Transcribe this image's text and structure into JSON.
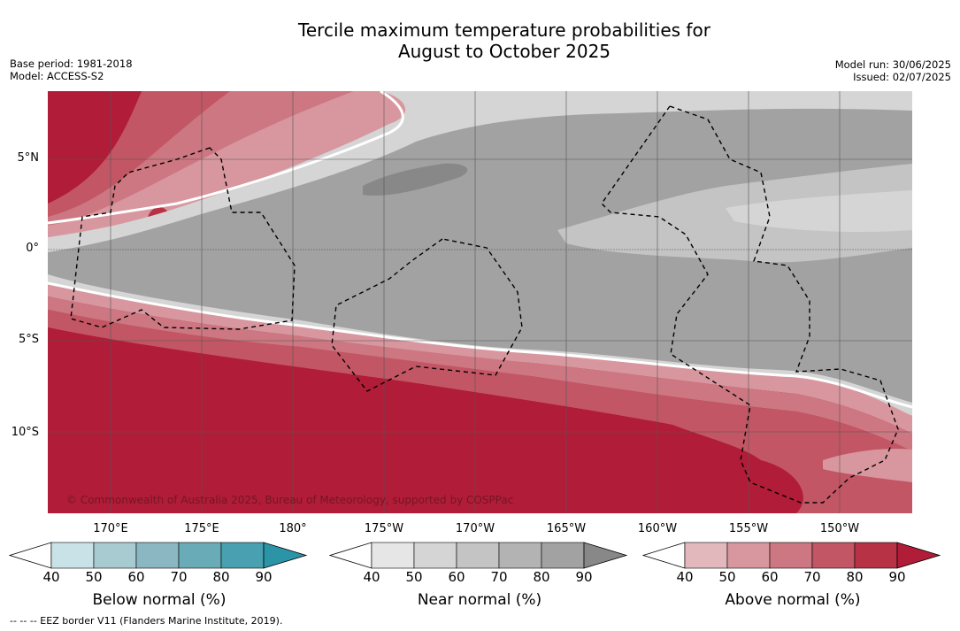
{
  "title_line1": "Tercile maximum temperature probabilities for",
  "title_line2": "August to October 2025",
  "base_period": "Base period: 1981-2018",
  "model": "Model: ACCESS-S2",
  "model_run": "Model run: 30/06/2025",
  "issued": "Issued: 02/07/2025",
  "copyright": "© Commonwealth of Australia 2025, Bureau of Meteorology, supported by COSPPac",
  "lat_labels": [
    "5°N",
    "0°",
    "5°S",
    "10°S"
  ],
  "lon_labels": [
    "170°E",
    "175°E",
    "180°",
    "175°W",
    "170°W",
    "165°W",
    "160°W",
    "155°W",
    "150°W"
  ],
  "colorbars": [
    {
      "title": "Below normal (%)",
      "ticks": [
        "40",
        "50",
        "60",
        "70",
        "80",
        "90"
      ],
      "colors": [
        "#ffffff",
        "#c9e2e8",
        "#a8cbd1",
        "#8ab7c1",
        "#6aabb8",
        "#48a0b0",
        "#2c94a7"
      ]
    },
    {
      "title": "Near normal (%)",
      "ticks": [
        "40",
        "50",
        "60",
        "70",
        "80",
        "90"
      ],
      "colors": [
        "#ffffff",
        "#e6e6e6",
        "#d5d5d5",
        "#c4c4c4",
        "#b3b3b3",
        "#a2a2a2",
        "#888888"
      ]
    },
    {
      "title": "Above normal (%)",
      "ticks": [
        "40",
        "50",
        "60",
        "70",
        "80",
        "90"
      ],
      "colors": [
        "#ffffff",
        "#e3b8bd",
        "#d8979f",
        "#cc7781",
        "#c25664",
        "#b83246",
        "#b11c38"
      ]
    }
  ],
  "footer": "--  --  -- EEZ border V11 (Flanders Marine Institute, 2019)."
}
